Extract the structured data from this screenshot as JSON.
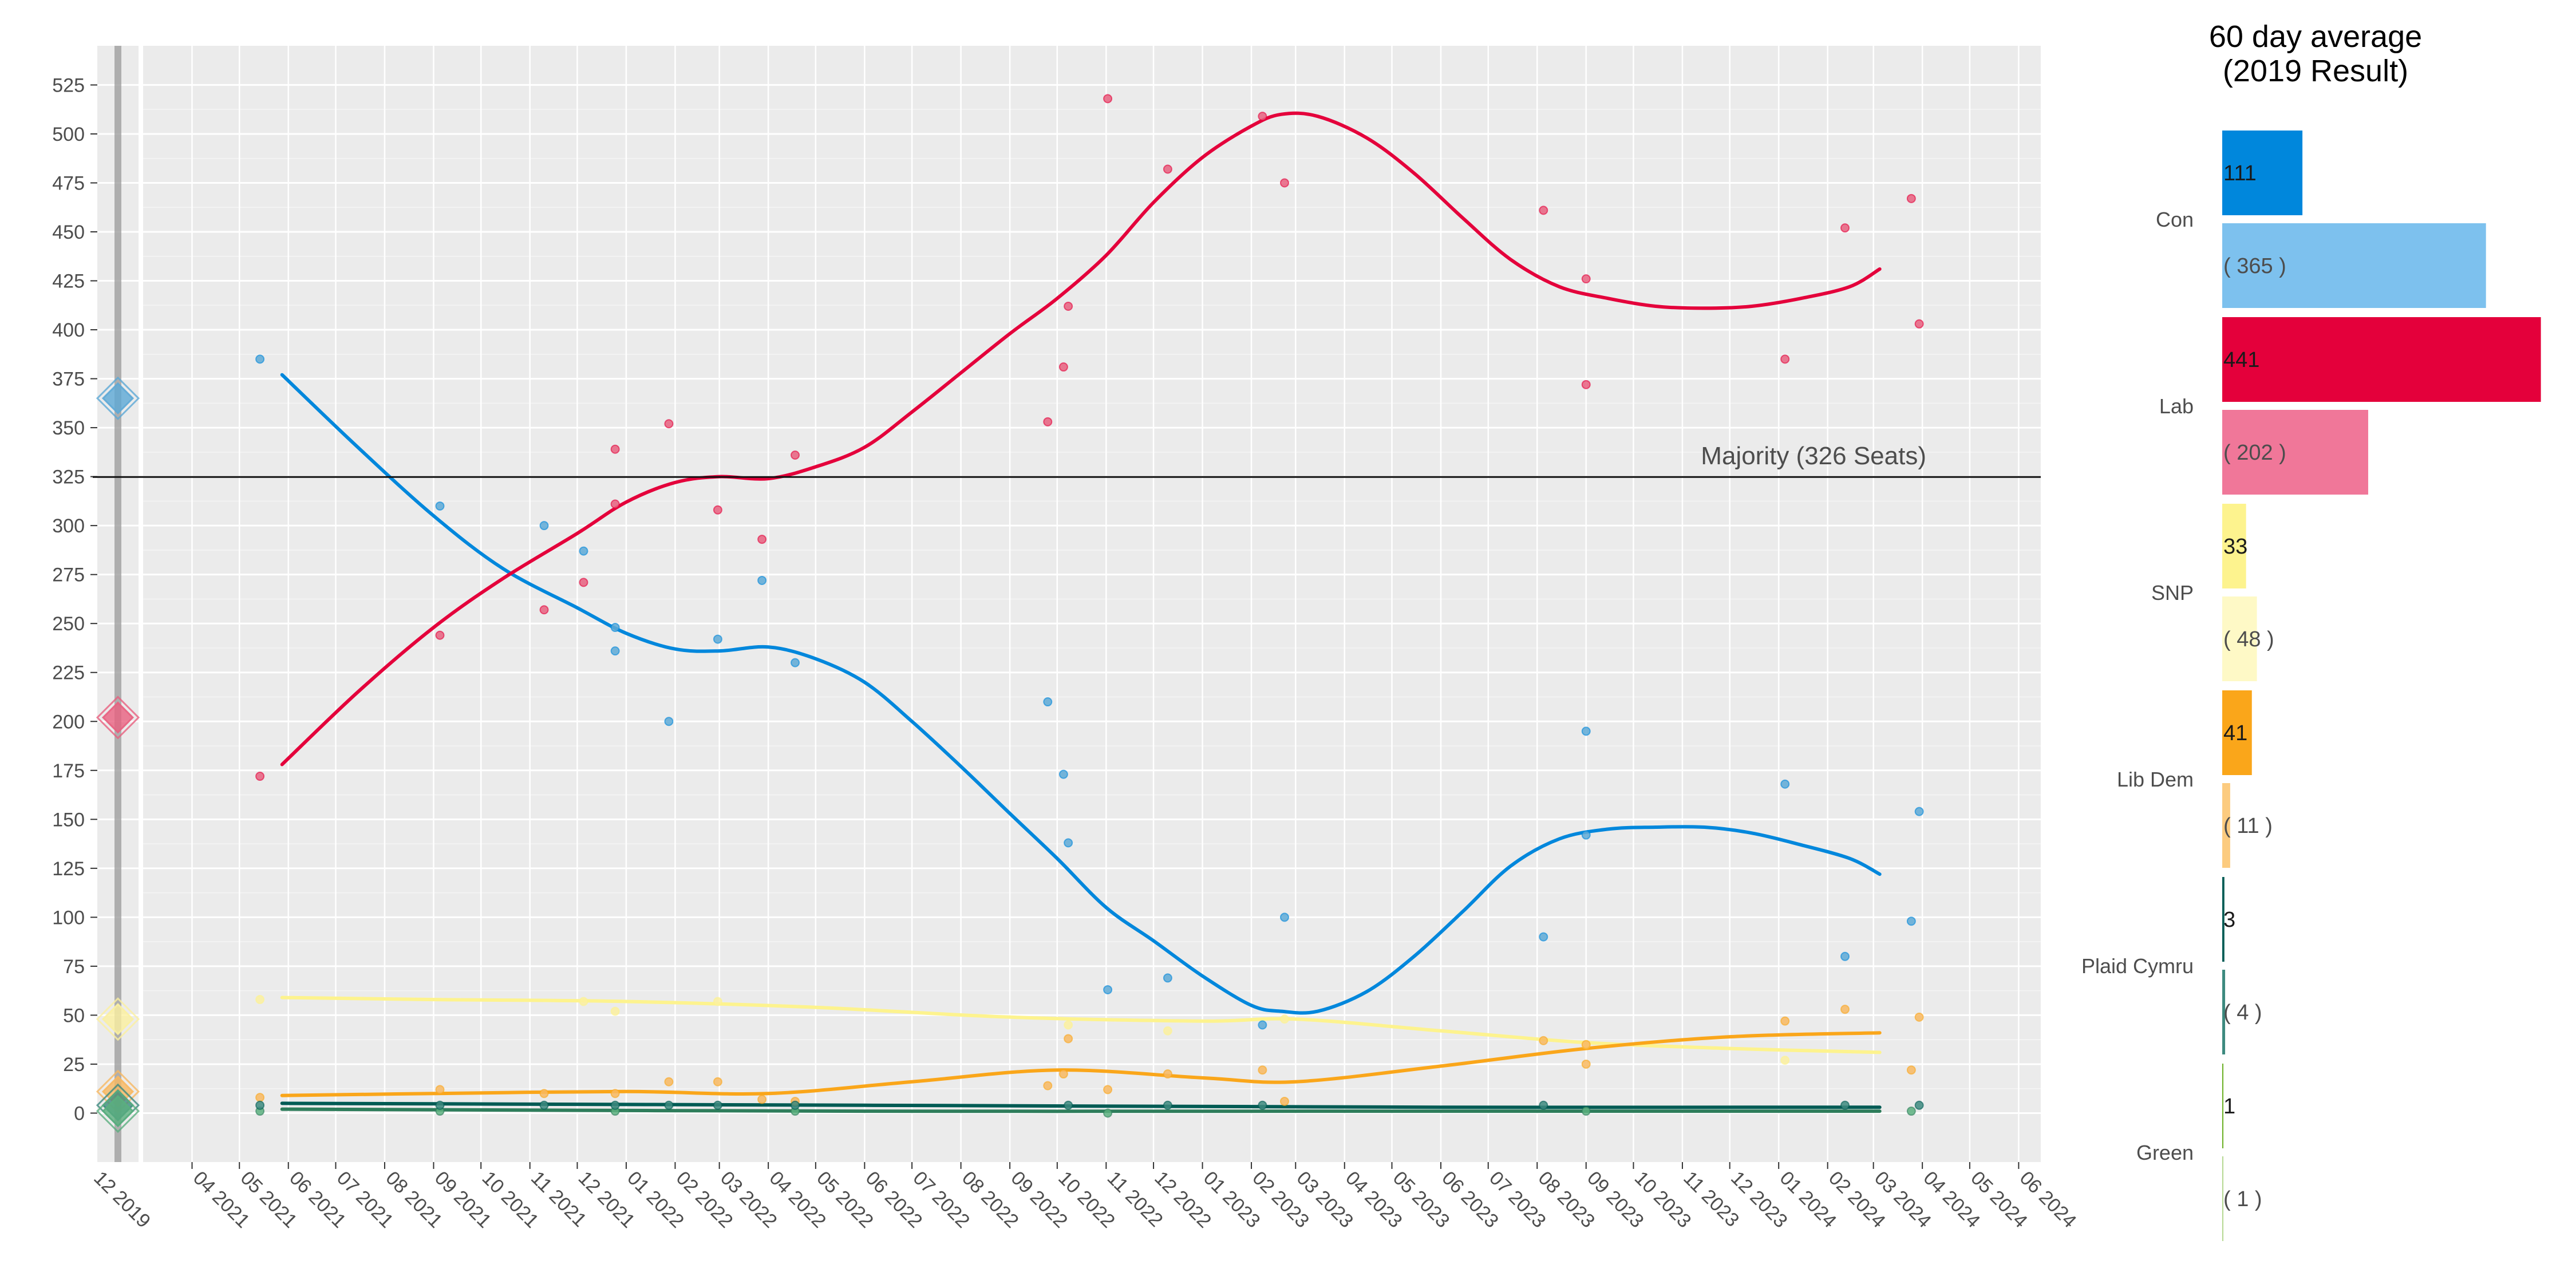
{
  "chart_data": [
    {
      "type": "scatter",
      "title": "",
      "xlabel": "",
      "ylabel": "",
      "ylim": [
        -25,
        545
      ],
      "xlim": [
        "2021-03-01",
        "2024-06-15"
      ],
      "grid": true,
      "y_ticks": [
        0,
        25,
        50,
        75,
        100,
        125,
        150,
        175,
        200,
        225,
        250,
        275,
        300,
        325,
        350,
        375,
        400,
        425,
        450,
        475,
        500,
        525
      ],
      "x_ticks": [
        "04 2021",
        "05 2021",
        "06 2021",
        "07 2021",
        "08 2021",
        "09 2021",
        "10 2021",
        "11 2021",
        "12 2021",
        "01 2022",
        "02 2022",
        "03 2022",
        "04 2022",
        "05 2022",
        "06 2022",
        "07 2022",
        "08 2022",
        "09 2022",
        "10 2022",
        "11 2022",
        "12 2022",
        "01 2023",
        "02 2023",
        "03 2023",
        "04 2023",
        "05 2023",
        "06 2023",
        "07 2023",
        "08 2023",
        "09 2023",
        "10 2023",
        "11 2023",
        "12 2023",
        "01 2024",
        "02 2024",
        "03 2024",
        "04 2024",
        "05 2024",
        "06 2024"
      ],
      "election_strip": {
        "label": "12 2019",
        "markers": [
          {
            "party": "Con",
            "value": 365
          },
          {
            "party": "Lab",
            "value": 202
          },
          {
            "party": "SNP",
            "value": 48
          },
          {
            "party": "Lib Dem",
            "value": 11
          },
          {
            "party": "Plaid Cymru",
            "value": 4
          },
          {
            "party": "Green",
            "value": 1
          }
        ]
      },
      "majority": {
        "value": 326,
        "label": "Majority (326 Seats)"
      },
      "series": [
        {
          "party": "Con",
          "color": "#0087DC",
          "point_color": "#5DA9D6",
          "points": [
            [
              "2021-05-14",
              385
            ],
            [
              "2021-09-05",
              310
            ],
            [
              "2021-11-10",
              300
            ],
            [
              "2021-12-05",
              287
            ],
            [
              "2021-12-25",
              248
            ],
            [
              "2021-12-25",
              236
            ],
            [
              "2022-01-28",
              200
            ],
            [
              "2022-02-28",
              242
            ],
            [
              "2022-03-28",
              272
            ],
            [
              "2022-04-18",
              230
            ],
            [
              "2022-09-25",
              210
            ],
            [
              "2022-10-05",
              173
            ],
            [
              "2022-10-08",
              138
            ],
            [
              "2022-11-02",
              63
            ],
            [
              "2022-12-10",
              69
            ],
            [
              "2023-02-08",
              45
            ],
            [
              "2023-02-22",
              100
            ],
            [
              "2023-08-05",
              90
            ],
            [
              "2023-09-01",
              195
            ],
            [
              "2023-09-01",
              142
            ],
            [
              "2024-01-05",
              168
            ],
            [
              "2024-02-12",
              80
            ],
            [
              "2024-03-25",
              98
            ],
            [
              "2024-03-30",
              154
            ]
          ],
          "trend": [
            [
              "2021-05-28",
              377
            ],
            [
              "2021-07-15",
              340
            ],
            [
              "2021-09-01",
              305
            ],
            [
              "2021-10-15",
              278
            ],
            [
              "2021-12-01",
              258
            ],
            [
              "2022-01-01",
              245
            ],
            [
              "2022-02-01",
              237
            ],
            [
              "2022-03-01",
              236
            ],
            [
              "2022-04-01",
              238
            ],
            [
              "2022-05-01",
              232
            ],
            [
              "2022-06-01",
              220
            ],
            [
              "2022-07-01",
              200
            ],
            [
              "2022-08-01",
              177
            ],
            [
              "2022-09-01",
              153
            ],
            [
              "2022-10-01",
              130
            ],
            [
              "2022-11-01",
              105
            ],
            [
              "2022-12-01",
              88
            ],
            [
              "2023-01-01",
              70
            ],
            [
              "2023-02-01",
              55
            ],
            [
              "2023-02-20",
              52
            ],
            [
              "2023-03-15",
              52
            ],
            [
              "2023-04-15",
              62
            ],
            [
              "2023-05-15",
              80
            ],
            [
              "2023-06-15",
              103
            ],
            [
              "2023-07-15",
              126
            ],
            [
              "2023-08-15",
              140
            ],
            [
              "2023-09-15",
              145
            ],
            [
              "2023-10-15",
              146
            ],
            [
              "2023-11-15",
              146
            ],
            [
              "2023-12-15",
              143
            ],
            [
              "2024-01-15",
              137
            ],
            [
              "2024-02-15",
              130
            ],
            [
              "2024-03-05",
              122
            ]
          ]
        },
        {
          "party": "Lab",
          "color": "#E4003B",
          "point_color": "#E8607F",
          "points": [
            [
              "2021-05-14",
              172
            ],
            [
              "2021-09-05",
              244
            ],
            [
              "2021-11-10",
              257
            ],
            [
              "2021-12-05",
              271
            ],
            [
              "2021-12-25",
              339
            ],
            [
              "2021-12-25",
              311
            ],
            [
              "2022-01-28",
              352
            ],
            [
              "2022-02-28",
              308
            ],
            [
              "2022-03-28",
              293
            ],
            [
              "2022-04-18",
              336
            ],
            [
              "2022-09-25",
              353
            ],
            [
              "2022-10-05",
              381
            ],
            [
              "2022-10-08",
              412
            ],
            [
              "2022-11-02",
              518
            ],
            [
              "2022-12-10",
              482
            ],
            [
              "2023-02-08",
              509
            ],
            [
              "2023-02-22",
              475
            ],
            [
              "2023-08-05",
              461
            ],
            [
              "2023-09-01",
              426
            ],
            [
              "2023-09-01",
              372
            ],
            [
              "2024-01-05",
              385
            ],
            [
              "2024-02-12",
              452
            ],
            [
              "2024-03-25",
              467
            ],
            [
              "2024-03-30",
              403
            ]
          ],
          "trend": [
            [
              "2021-05-28",
              178
            ],
            [
              "2021-07-15",
              215
            ],
            [
              "2021-09-01",
              248
            ],
            [
              "2021-10-15",
              273
            ],
            [
              "2021-12-01",
              296
            ],
            [
              "2022-01-01",
              312
            ],
            [
              "2022-02-01",
              322
            ],
            [
              "2022-03-01",
              325
            ],
            [
              "2022-04-01",
              324
            ],
            [
              "2022-05-01",
              330
            ],
            [
              "2022-06-01",
              340
            ],
            [
              "2022-07-01",
              358
            ],
            [
              "2022-08-01",
              378
            ],
            [
              "2022-09-01",
              398
            ],
            [
              "2022-10-01",
              416
            ],
            [
              "2022-11-01",
              438
            ],
            [
              "2022-12-01",
              465
            ],
            [
              "2023-01-01",
              488
            ],
            [
              "2023-02-01",
              504
            ],
            [
              "2023-02-20",
              510
            ],
            [
              "2023-03-15",
              509
            ],
            [
              "2023-04-15",
              498
            ],
            [
              "2023-05-15",
              480
            ],
            [
              "2023-06-15",
              457
            ],
            [
              "2023-07-15",
              436
            ],
            [
              "2023-08-15",
              422
            ],
            [
              "2023-09-15",
              416
            ],
            [
              "2023-10-15",
              412
            ],
            [
              "2023-11-15",
              411
            ],
            [
              "2023-12-15",
              412
            ],
            [
              "2024-01-15",
              416
            ],
            [
              "2024-02-15",
              422
            ],
            [
              "2024-03-05",
              431
            ]
          ]
        },
        {
          "party": "SNP",
          "color": "#FDF38E",
          "point_color": "#FBF0A0",
          "points": [
            [
              "2021-05-14",
              58
            ],
            [
              "2021-12-05",
              57
            ],
            [
              "2021-12-25",
              52
            ],
            [
              "2022-02-28",
              57
            ],
            [
              "2022-10-08",
              45
            ],
            [
              "2022-12-10",
              42
            ],
            [
              "2023-02-22",
              48
            ],
            [
              "2023-09-01",
              35
            ],
            [
              "2024-01-05",
              27
            ]
          ],
          "trend": [
            [
              "2021-05-28",
              59
            ],
            [
              "2021-09-01",
              58
            ],
            [
              "2022-01-01",
              57
            ],
            [
              "2022-05-01",
              54
            ],
            [
              "2022-09-01",
              49
            ],
            [
              "2023-01-01",
              47
            ],
            [
              "2023-03-01",
              48
            ],
            [
              "2023-06-01",
              42
            ],
            [
              "2023-09-01",
              36
            ],
            [
              "2023-12-01",
              33
            ],
            [
              "2024-03-05",
              31
            ]
          ]
        },
        {
          "party": "Lib Dem",
          "color": "#FAA61A",
          "point_color": "#F8B860",
          "points": [
            [
              "2021-05-14",
              8
            ],
            [
              "2021-09-05",
              12
            ],
            [
              "2021-11-10",
              10
            ],
            [
              "2021-12-25",
              10
            ],
            [
              "2022-01-28",
              16
            ],
            [
              "2022-02-28",
              16
            ],
            [
              "2022-03-28",
              7
            ],
            [
              "2022-04-18",
              6
            ],
            [
              "2022-09-25",
              14
            ],
            [
              "2022-10-05",
              20
            ],
            [
              "2022-10-08",
              38
            ],
            [
              "2022-11-02",
              12
            ],
            [
              "2022-12-10",
              20
            ],
            [
              "2023-02-08",
              22
            ],
            [
              "2023-02-22",
              6
            ],
            [
              "2023-08-05",
              37
            ],
            [
              "2023-09-01",
              35
            ],
            [
              "2023-09-01",
              25
            ],
            [
              "2024-01-05",
              47
            ],
            [
              "2024-02-12",
              53
            ],
            [
              "2024-03-25",
              22
            ],
            [
              "2024-03-30",
              49
            ]
          ],
          "trend": [
            [
              "2021-05-28",
              9
            ],
            [
              "2021-09-01",
              10
            ],
            [
              "2022-01-01",
              11
            ],
            [
              "2022-04-01",
              10
            ],
            [
              "2022-07-01",
              16
            ],
            [
              "2022-10-01",
              22
            ],
            [
              "2023-01-01",
              18
            ],
            [
              "2023-03-01",
              16
            ],
            [
              "2023-06-01",
              24
            ],
            [
              "2023-09-01",
              33
            ],
            [
              "2023-12-01",
              39
            ],
            [
              "2024-03-05",
              41
            ]
          ]
        },
        {
          "party": "Plaid Cymru",
          "color": "#005B54",
          "point_color": "#3D8A7F",
          "points": [
            [
              "2021-05-14",
              4
            ],
            [
              "2021-09-05",
              4
            ],
            [
              "2021-11-10",
              4
            ],
            [
              "2021-12-25",
              4
            ],
            [
              "2022-01-28",
              4
            ],
            [
              "2022-02-28",
              4
            ],
            [
              "2022-04-18",
              4
            ],
            [
              "2022-10-08",
              4
            ],
            [
              "2022-12-10",
              4
            ],
            [
              "2023-02-08",
              4
            ],
            [
              "2023-08-05",
              4
            ],
            [
              "2024-02-12",
              4
            ],
            [
              "2024-03-30",
              4
            ]
          ],
          "trend": [
            [
              "2021-05-28",
              5
            ],
            [
              "2022-06-01",
              4
            ],
            [
              "2023-06-01",
              3
            ],
            [
              "2024-03-05",
              3
            ]
          ]
        },
        {
          "party": "Green",
          "color": "#2E7D5B",
          "point_color": "#5AAF7E",
          "points": [
            [
              "2021-05-14",
              1
            ],
            [
              "2021-09-05",
              1
            ],
            [
              "2021-12-25",
              1
            ],
            [
              "2022-04-18",
              1
            ],
            [
              "2022-11-02",
              0
            ],
            [
              "2023-09-01",
              1
            ],
            [
              "2024-03-25",
              1
            ]
          ],
          "trend": [
            [
              "2021-05-28",
              2
            ],
            [
              "2022-06-01",
              1
            ],
            [
              "2023-06-01",
              1
            ],
            [
              "2024-03-05",
              1
            ]
          ]
        }
      ]
    },
    {
      "type": "bar",
      "title": "60 day average",
      "subtitle": "(2019 Result)",
      "categories": [
        "Con",
        "Lab",
        "SNP",
        "Lib Dem",
        "Plaid Cymru",
        "Green"
      ],
      "series": [
        {
          "values": [
            111,
            441,
            33,
            41,
            3,
            1
          ],
          "colors": [
            "#0087DC",
            "#E4003B",
            "#FDF38E",
            "#FAA61A",
            "#005B54",
            "#6AB023"
          ]
        },
        {
          "values": [
            365,
            202,
            48,
            11,
            4,
            1
          ],
          "colors": [
            "#7DC1EE",
            "#F07799",
            "#FEF9C6",
            "#FCCB7F",
            "#3D8A7F",
            "#B5D891"
          ]
        }
      ],
      "labels_current": [
        "111",
        "441",
        "33",
        "41",
        "3",
        "1"
      ],
      "labels_previous": [
        "( 365 )",
        "( 202 )",
        "( 48 )",
        "( 11 )",
        "( 4 )",
        "( 1 )"
      ],
      "xlim": [
        0,
        450
      ]
    }
  ]
}
